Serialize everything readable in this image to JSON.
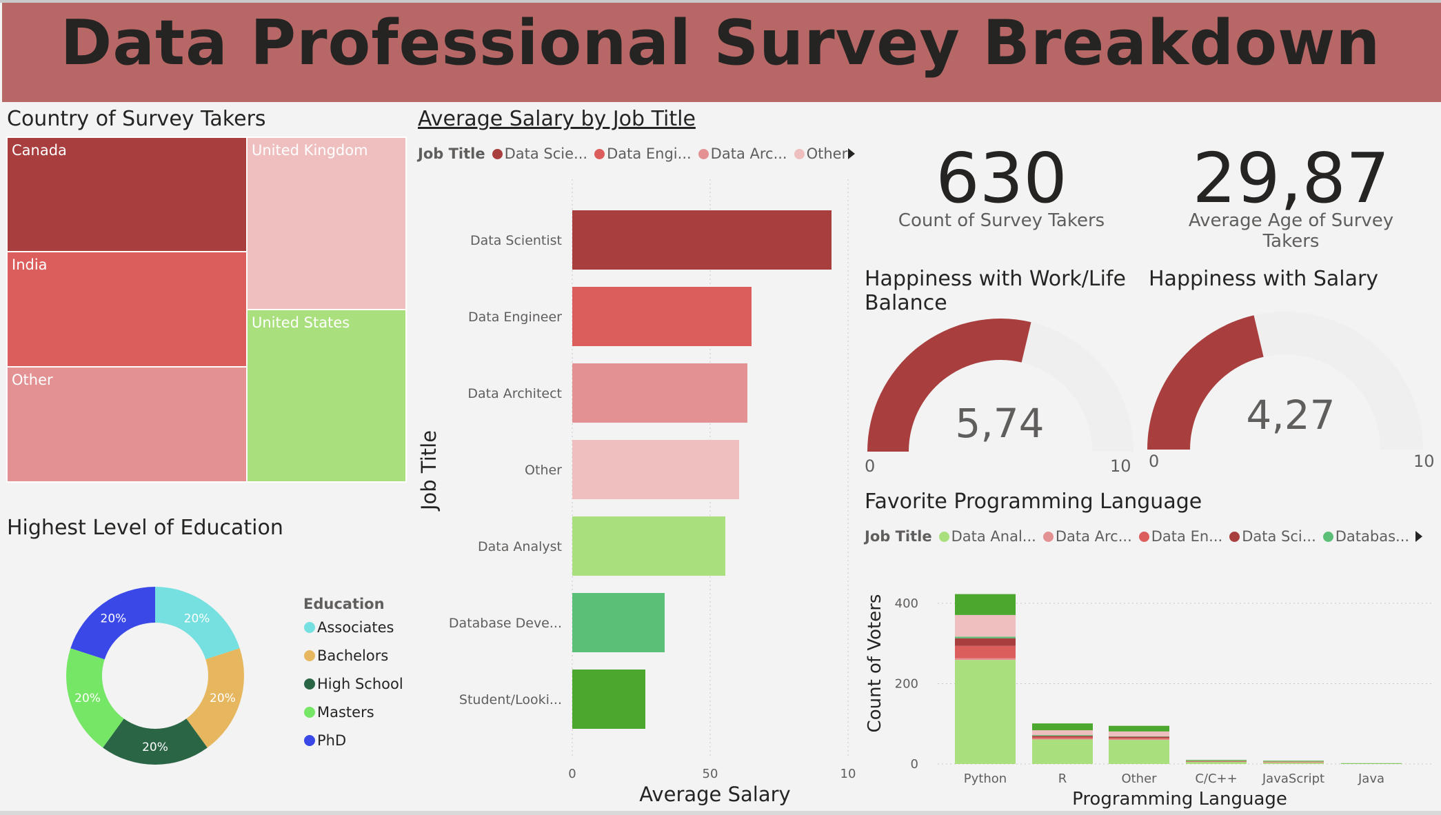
{
  "header": {
    "title": "Data Professional Survey Breakdown"
  },
  "treemap": {
    "title": "Country of Survey Takers",
    "tiles": [
      {
        "label": "Canada",
        "color": "#a83f3e"
      },
      {
        "label": "India",
        "color": "#dc5e5c"
      },
      {
        "label": "Other",
        "color": "#e49194"
      },
      {
        "label": "United Kingdom",
        "color": "#efbfc0"
      },
      {
        "label": "United States",
        "color": "#a9e07d"
      }
    ]
  },
  "salary": {
    "title": "Average Salary by Job Title",
    "legend_title": "Job Title",
    "legend": [
      {
        "label": "Data Scie...",
        "color": "#a83f3e"
      },
      {
        "label": "Data Engi...",
        "color": "#dc5e5c"
      },
      {
        "label": "Data Arc...",
        "color": "#e49194"
      },
      {
        "label": "Other",
        "color": "#efbfc0"
      }
    ],
    "ylabel": "Job Title",
    "xlabel": "Average Salary",
    "xticks": [
      "0",
      "50",
      "10"
    ]
  },
  "cards": {
    "count": {
      "value": "630",
      "label": "Count of Survey Takers"
    },
    "age": {
      "value": "29,87",
      "label": "Average Age of Survey Takers"
    }
  },
  "gauges": {
    "worklife": {
      "title_line1": "Happiness with Work/Life",
      "title_line2": "Balance",
      "value_text": "5,74",
      "min": "0",
      "max": "10",
      "value": 5.74,
      "color": "#a83f3e"
    },
    "salary": {
      "title_line1": "Happiness with Salary",
      "value_text": "4,27",
      "min": "0",
      "max": "10",
      "value": 4.27,
      "color": "#a83f3e"
    }
  },
  "education": {
    "title": "Highest Level of Education",
    "legend_title": "Education",
    "items": [
      {
        "label": "Associates",
        "color": "#76e0e0",
        "pct": "20%"
      },
      {
        "label": "Bachelors",
        "color": "#e6b75e",
        "pct": "20%"
      },
      {
        "label": "High School",
        "color": "#2a6546",
        "pct": "20%"
      },
      {
        "label": "Masters",
        "color": "#75e665",
        "pct": "20%"
      },
      {
        "label": "PhD",
        "color": "#3a48e8",
        "pct": "20%"
      }
    ]
  },
  "languages": {
    "title": "Favorite Programming Language",
    "legend_title": "Job Title",
    "legend": [
      {
        "label": "Data Anal...",
        "color": "#a9e07d"
      },
      {
        "label": "Data Arc...",
        "color": "#e49194"
      },
      {
        "label": "Data En...",
        "color": "#dc5e5c"
      },
      {
        "label": "Data Sci...",
        "color": "#a83f3e"
      },
      {
        "label": "Databas...",
        "color": "#5cbf78"
      }
    ],
    "ylabel": "Count of Voters",
    "xlabel": "Programming Language",
    "yticks": [
      "0",
      "200",
      "400"
    ]
  },
  "chart_data": [
    {
      "type": "bar",
      "orientation": "horizontal",
      "title": "Average Salary by Job Title",
      "xlabel": "Average Salary",
      "ylabel": "Job Title",
      "xlim": [
        0,
        100
      ],
      "categories": [
        "Data Scientist",
        "Data Engineer",
        "Data Architect",
        "Other",
        "Data Analyst",
        "Database Deve...",
        "Student/Looki..."
      ],
      "values": [
        94,
        65,
        63.5,
        60.5,
        55.5,
        33.5,
        26.5
      ],
      "colors": [
        "#a83f3e",
        "#dc5e5c",
        "#e49194",
        "#efbfc0",
        "#a9e07d",
        "#5cbf78",
        "#4ca72e"
      ]
    },
    {
      "type": "bar",
      "stacked": true,
      "title": "Favorite Programming Language",
      "xlabel": "Programming Language",
      "ylabel": "Count of Voters",
      "ylim": [
        0,
        430
      ],
      "categories": [
        "Python",
        "R",
        "Other",
        "C/C++",
        "JavaScript",
        "Java"
      ],
      "series": [
        {
          "name": "Data Analyst",
          "color": "#a9e07d",
          "values": [
            259,
            61,
            60,
            5,
            3,
            1
          ]
        },
        {
          "name": "Data Architect",
          "color": "#e49194",
          "values": [
            4,
            2,
            2,
            1,
            1,
            0
          ]
        },
        {
          "name": "Data Engineer",
          "color": "#dc5e5c",
          "values": [
            31,
            4,
            3,
            0,
            1,
            0
          ]
        },
        {
          "name": "Data Scientist",
          "color": "#a83f3e",
          "values": [
            19,
            3,
            3,
            1,
            0,
            0
          ]
        },
        {
          "name": "Database Developer",
          "color": "#5cbf78",
          "values": [
            4,
            2,
            1,
            0,
            0,
            0
          ]
        },
        {
          "name": "Other",
          "color": "#efbfc0",
          "values": [
            54,
            12,
            12,
            1,
            1,
            0
          ]
        },
        {
          "name": "Student/Looking",
          "color": "#4ca72e",
          "values": [
            52,
            17,
            14,
            2,
            2,
            1
          ]
        }
      ]
    },
    {
      "type": "pie",
      "donut": true,
      "title": "Highest Level of Education",
      "categories": [
        "Associates",
        "Bachelors",
        "High School",
        "Masters",
        "PhD"
      ],
      "values": [
        20,
        20,
        20,
        20,
        20
      ]
    }
  ]
}
